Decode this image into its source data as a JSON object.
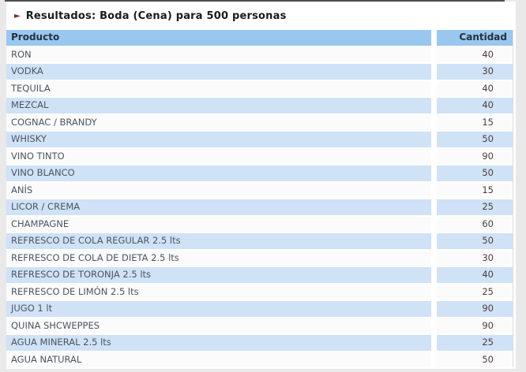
{
  "title": {
    "arrow_icon": "►",
    "text": "Resultados: Boda (Cena) para 500 personas"
  },
  "table": {
    "columns": [
      "Producto",
      "Cantidad"
    ],
    "rows": [
      {
        "producto": "RON",
        "cantidad": "40"
      },
      {
        "producto": "VODKA",
        "cantidad": "30"
      },
      {
        "producto": "TEQUILA",
        "cantidad": "40"
      },
      {
        "producto": "MEZCAL",
        "cantidad": "40"
      },
      {
        "producto": "COGNAC / BRANDY",
        "cantidad": "15"
      },
      {
        "producto": "WHISKY",
        "cantidad": "50"
      },
      {
        "producto": "VINO TINTO",
        "cantidad": "90"
      },
      {
        "producto": "VINO BLANCO",
        "cantidad": "50"
      },
      {
        "producto": "ANÍS",
        "cantidad": "15"
      },
      {
        "producto": "LICOR / CREMA",
        "cantidad": "25"
      },
      {
        "producto": "CHAMPAGNE",
        "cantidad": "60"
      },
      {
        "producto": "REFRESCO DE COLA REGULAR 2.5 lts",
        "cantidad": "50"
      },
      {
        "producto": "REFRESCO DE COLA DE DIETA 2.5 lts",
        "cantidad": "30"
      },
      {
        "producto": "REFRESCO DE TORONJA 2.5 lts",
        "cantidad": "40"
      },
      {
        "producto": "REFRESCO DE LIMÓN 2.5 lts",
        "cantidad": "25"
      },
      {
        "producto": "JUGO 1 lt",
        "cantidad": "90"
      },
      {
        "producto": "QUINA SHCWEPPES",
        "cantidad": "90"
      },
      {
        "producto": "AGUA MINERAL 2.5 lts",
        "cantidad": "25"
      },
      {
        "producto": "AGUA NATURAL",
        "cantidad": "50"
      }
    ]
  },
  "colors": {
    "header_row_bg": "#99c7f0",
    "alt_row_bg": "#cfe2f6",
    "title_arrow": "#7a2b20",
    "outer_bg": "#e9e9e9"
  }
}
